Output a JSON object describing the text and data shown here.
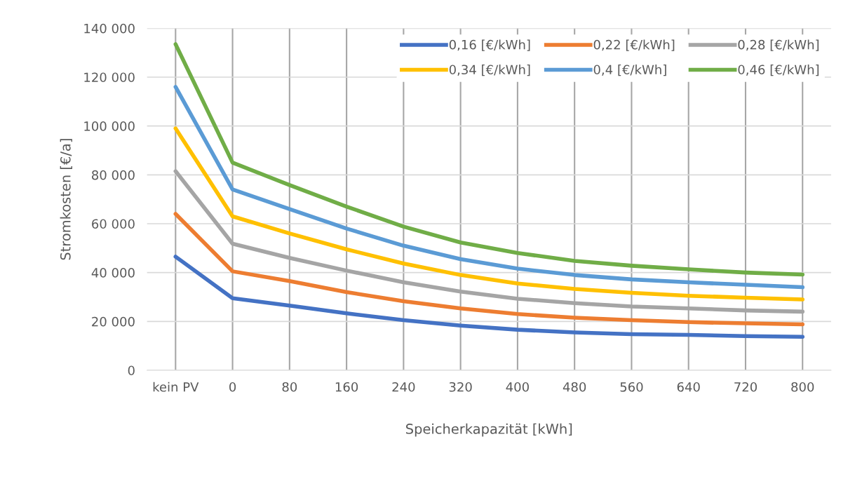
{
  "chart_data": {
    "type": "line",
    "xlabel": "Speicherkapazität [kWh]",
    "ylabel": "Stromkosten [€/a]",
    "categories": [
      "kein PV",
      "0",
      "80",
      "160",
      "240",
      "320",
      "400",
      "480",
      "560",
      "640",
      "720",
      "800"
    ],
    "series": [
      {
        "name": "0,16 [€/kWh]",
        "color": "#4472c4",
        "values": [
          46500,
          29500,
          26500,
          23300,
          20500,
          18300,
          16600,
          15500,
          14800,
          14500,
          14000,
          13700
        ]
      },
      {
        "name": "0,22 [€/kWh]",
        "color": "#ed7d31",
        "values": [
          64000,
          40500,
          36500,
          32000,
          28300,
          25300,
          23000,
          21500,
          20500,
          19700,
          19200,
          18800
        ]
      },
      {
        "name": "0,28 [€/kWh]",
        "color": "#a5a5a5",
        "values": [
          81500,
          51800,
          46000,
          40800,
          36000,
          32200,
          29300,
          27500,
          26100,
          25300,
          24500,
          24000
        ]
      },
      {
        "name": "0,34 [€/kWh]",
        "color": "#ffc000",
        "values": [
          99000,
          63000,
          56000,
          49500,
          43700,
          39000,
          35500,
          33300,
          31700,
          30500,
          29700,
          29000
        ]
      },
      {
        "name": "0,4 [€/kWh]",
        "color": "#5b9bd5",
        "values": [
          116000,
          74000,
          66000,
          58000,
          51000,
          45500,
          41600,
          39000,
          37200,
          36000,
          35000,
          34000
        ]
      },
      {
        "name": "0,46 [€/kWh]",
        "color": "#70ad47",
        "values": [
          133500,
          85000,
          75800,
          67000,
          58800,
          52300,
          48000,
          44800,
          42800,
          41300,
          40000,
          39200
        ]
      }
    ],
    "ylim": [
      0,
      140000
    ],
    "yticks": [
      0,
      {
        "value": 20000,
        "label": "20 000"
      },
      {
        "value": 40000,
        "label": "40 000"
      },
      {
        "value": 60000,
        "label": "60 000"
      },
      {
        "value": 80000,
        "label": "80 000"
      },
      {
        "value": 100000,
        "label": "100 000"
      },
      {
        "value": 120000,
        "label": "120 000"
      },
      {
        "value": 140000,
        "label": "140 000"
      }
    ],
    "grid": true,
    "legend": "top right",
    "marker": "none",
    "line_style": "solid"
  }
}
